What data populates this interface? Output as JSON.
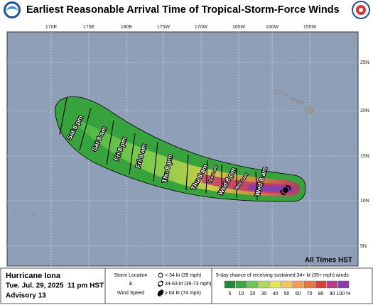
{
  "header": {
    "title": "Earliest Reasonable Arrival Time of Tropical-Storm-Force Winds"
  },
  "map": {
    "longitudes": [
      "170E",
      "175E",
      "180E",
      "175W",
      "170W",
      "165W",
      "160W",
      "155W"
    ],
    "latitudes": [
      "25N",
      "20N",
      "15N",
      "10N",
      "5N"
    ],
    "time_labels": [
      "Sat 8 pm",
      "Sat 8 am",
      "Fri 8 pm",
      "Fri 8 am",
      "Thu 8 pm",
      "Thu 8 am",
      "Thu 2 am",
      "Wed 8 pm",
      "Wed 2 pm",
      "Wed 8 am"
    ],
    "note": "All Times HST"
  },
  "footer": {
    "storm": "Hurricane Iona",
    "date": "Tue. Jul. 29, 2025  11 pm HST",
    "advisory": "Advisory 13",
    "key_title": [
      "Storm Location",
      "&",
      "Wind Speed"
    ],
    "key_items": [
      "< 34 kt (39 mph)",
      "34-63 kt (39-73 mph)",
      "≥ 64 kt (74 mph)"
    ],
    "legend_title": "5-day chance of receiving sustained 34+ kt (39+ mph) winds",
    "legend_labels": [
      5,
      10,
      20,
      30,
      40,
      50,
      60,
      70,
      80,
      90,
      "100 %"
    ]
  }
}
